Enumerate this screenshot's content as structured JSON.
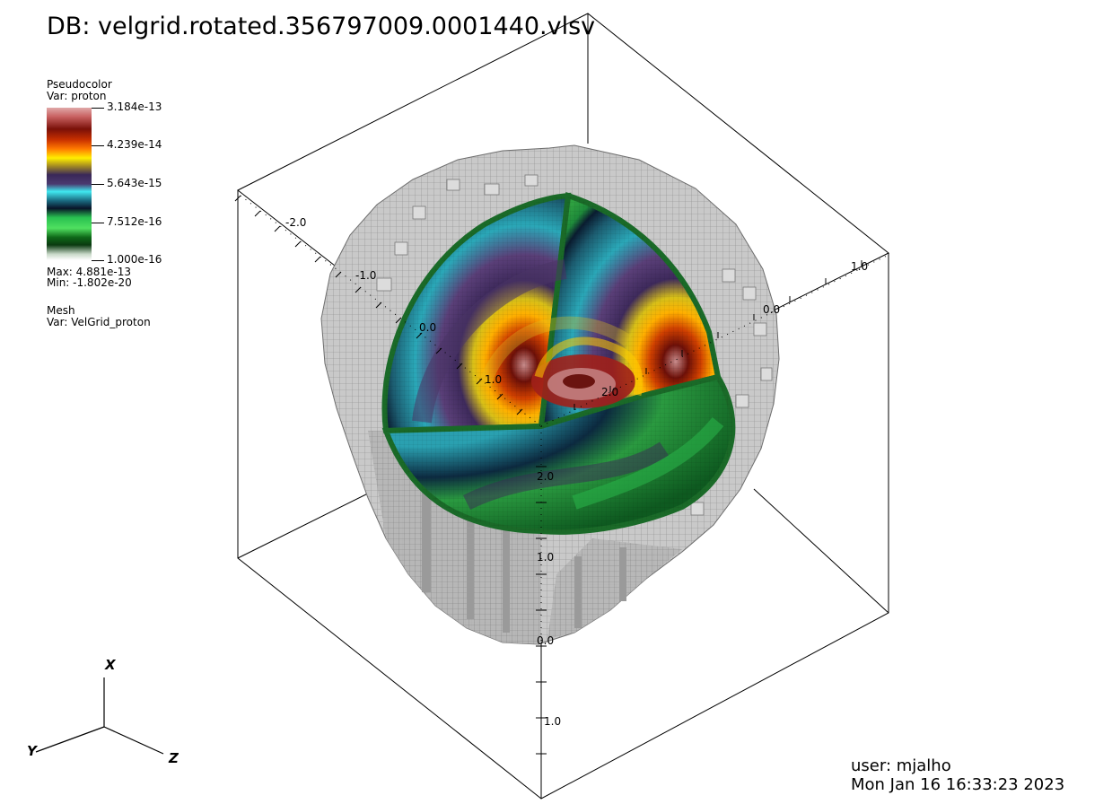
{
  "title": "DB: velgrid.rotated.356797009.0001440.vlsv",
  "legend": {
    "plot_type": "Pseudocolor",
    "variable": "Var: proton",
    "ticks": [
      "3.184e-13",
      "4.239e-14",
      "5.643e-15",
      "7.512e-16",
      "1.000e-16"
    ],
    "max": "Max:  4.881e-13",
    "min": "Min: -1.802e-20",
    "colors": [
      "#d99a9a",
      "#8b1a10",
      "#ff5a00",
      "#ffee00",
      "#2a2050",
      "#3fe0e8",
      "#0a1830",
      "#30c840",
      "#0a5010",
      "#f2f2f2"
    ]
  },
  "mesh_legend": {
    "plot_type": "Mesh",
    "variable": "Var: VelGrid_proton"
  },
  "axes": {
    "labels": {
      "upper_left": [
        "-2.0",
        "-1.0",
        "0.0",
        "1.0",
        "2.0"
      ],
      "upper_right": [
        "1.0",
        "0.0"
      ],
      "vertical": [
        "2.0",
        "1.0",
        "0.0",
        "1.0"
      ]
    }
  },
  "triad": {
    "x": "X",
    "y": "Y",
    "z": "Z"
  },
  "user": {
    "name": "user: mjalho",
    "date": "Mon Jan 16 16:33:23 2023"
  }
}
